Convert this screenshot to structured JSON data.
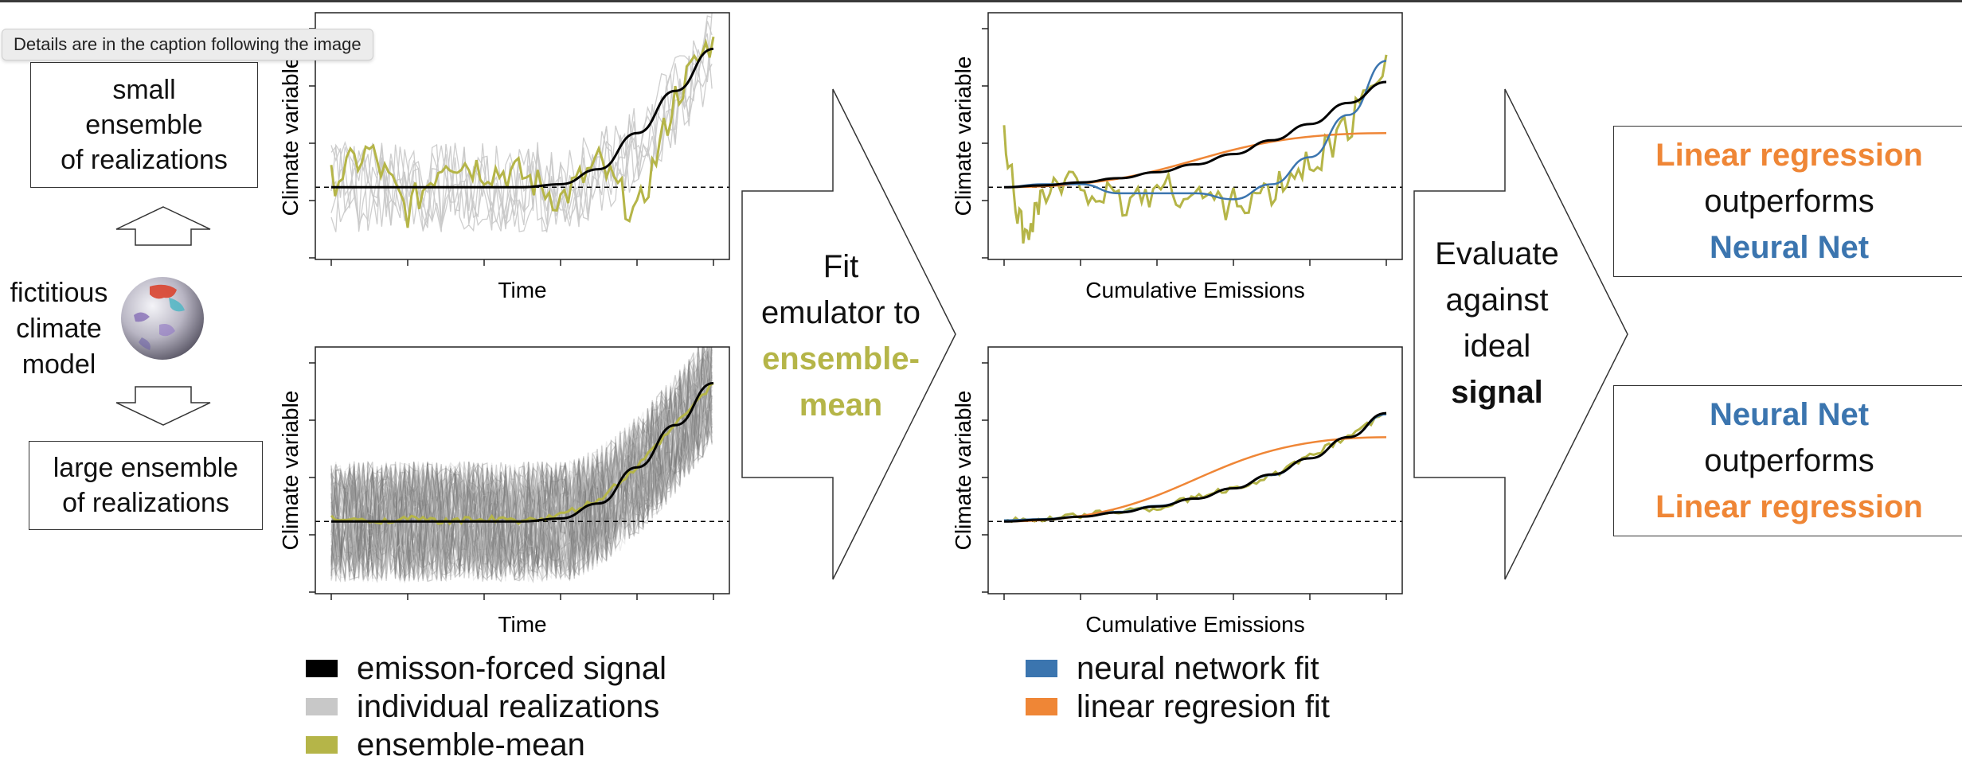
{
  "tooltip": "Details are in the caption following the image",
  "left_panel": {
    "small_box": [
      "small",
      "ensemble",
      "of realizations"
    ],
    "model_label": [
      "fictitious",
      "climate",
      "model"
    ],
    "large_box": [
      "large ensemble",
      "of realizations"
    ]
  },
  "colors": {
    "signal": "#000000",
    "realizations": "#c8c8c8",
    "ensemble_mean": "#b5b548",
    "neural_net": "#3b75af",
    "linear": "#ef8636"
  },
  "chart_data": [
    {
      "type": "line",
      "xlabel": "Time",
      "ylabel": "Climate variable",
      "series": [
        {
          "name": "emisson-forced signal",
          "x": [
            0,
            10,
            20,
            30,
            40,
            50,
            60,
            70,
            80,
            90,
            100
          ],
          "y": [
            0,
            0,
            0,
            0,
            0,
            0,
            0.05,
            0.3,
            0.9,
            1.6,
            2.3
          ]
        },
        {
          "name": "ensemble-mean",
          "x": [
            0,
            10,
            20,
            30,
            40,
            50,
            60,
            70,
            80,
            90,
            100
          ],
          "y": [
            0.1,
            0.6,
            -0.4,
            0.5,
            0.3,
            0.2,
            -0.2,
            0.4,
            -0.5,
            1.5,
            2.5
          ]
        }
      ]
    },
    {
      "type": "line",
      "xlabel": "Time",
      "ylabel": "Climate variable",
      "series": [
        {
          "name": "emisson-forced signal",
          "x": [
            0,
            10,
            20,
            30,
            40,
            50,
            60,
            70,
            80,
            90,
            100
          ],
          "y": [
            0,
            0,
            0,
            0,
            0,
            0,
            0.05,
            0.3,
            0.9,
            1.6,
            2.3
          ]
        },
        {
          "name": "ensemble-mean",
          "x": [
            0,
            10,
            20,
            30,
            40,
            50,
            60,
            70,
            80,
            90,
            100
          ],
          "y": [
            0.05,
            0.0,
            0.05,
            0.0,
            0.05,
            0.0,
            0.1,
            0.35,
            0.9,
            1.6,
            2.3
          ]
        }
      ]
    },
    {
      "type": "line",
      "xlabel": "Cumulative Emissions",
      "ylabel": "Climate variable",
      "series": [
        {
          "name": "emisson-forced signal",
          "x": [
            0,
            10,
            20,
            30,
            40,
            50,
            60,
            70,
            80,
            90,
            100
          ],
          "y": [
            0,
            0.03,
            0.08,
            0.15,
            0.25,
            0.38,
            0.55,
            0.78,
            1.05,
            1.4,
            1.75
          ]
        },
        {
          "name": "neural network fit",
          "x": [
            0,
            10,
            20,
            30,
            40,
            50,
            60,
            70,
            80,
            90,
            100
          ],
          "y": [
            0,
            0.05,
            0.05,
            -0.1,
            -0.1,
            -0.1,
            -0.2,
            0.05,
            0.5,
            1.2,
            2.1
          ]
        },
        {
          "name": "linear regresion fit",
          "x": [
            0,
            100
          ],
          "y": [
            0,
            0.9
          ]
        },
        {
          "name": "ensemble-mean",
          "x": [
            0,
            5,
            10,
            20,
            30,
            40,
            50,
            60,
            70,
            80,
            90,
            100
          ],
          "y": [
            0.8,
            -0.8,
            -0.1,
            0.1,
            -0.3,
            0.0,
            -0.1,
            -0.3,
            -0.1,
            0.4,
            1.0,
            2.2
          ]
        }
      ]
    },
    {
      "type": "line",
      "xlabel": "Cumulative Emissions",
      "ylabel": "Climate variable",
      "series": [
        {
          "name": "emisson-forced signal",
          "x": [
            0,
            10,
            20,
            30,
            40,
            50,
            60,
            70,
            80,
            90,
            100
          ],
          "y": [
            0,
            0.03,
            0.08,
            0.15,
            0.25,
            0.38,
            0.55,
            0.78,
            1.05,
            1.4,
            1.8
          ]
        },
        {
          "name": "neural network fit",
          "x": [
            0,
            10,
            20,
            30,
            40,
            50,
            60,
            70,
            80,
            90,
            100
          ],
          "y": [
            0.02,
            0.04,
            0.08,
            0.16,
            0.26,
            0.38,
            0.55,
            0.77,
            1.05,
            1.4,
            1.78
          ]
        },
        {
          "name": "linear regresion fit",
          "x": [
            0,
            100
          ],
          "y": [
            0,
            1.4
          ]
        },
        {
          "name": "ensemble-mean",
          "x": [
            0,
            10,
            20,
            30,
            40,
            50,
            60,
            70,
            80,
            90,
            100
          ],
          "y": [
            0.05,
            0.02,
            0.1,
            0.18,
            0.22,
            0.4,
            0.55,
            0.75,
            1.08,
            1.42,
            1.8
          ]
        }
      ]
    }
  ],
  "arrow1": {
    "line1": "Fit",
    "line2": "emulator to",
    "line3": "ensemble-",
    "line4": "mean"
  },
  "arrow2": {
    "line1": "Evaluate",
    "line2": "against",
    "line3": "ideal",
    "line4": "signal"
  },
  "result_top": {
    "line1": "Linear regression",
    "line2": "outperforms",
    "line3": "Neural Net"
  },
  "result_bottom": {
    "line1": "Neural Net",
    "line2": "outperforms",
    "line3": "Linear regression"
  },
  "legend_left": {
    "signal": "emisson-forced signal",
    "realizations": "individual realizations",
    "mean": "ensemble-mean"
  },
  "legend_right": {
    "nn": "neural network fit",
    "lr": "linear regresion fit"
  }
}
